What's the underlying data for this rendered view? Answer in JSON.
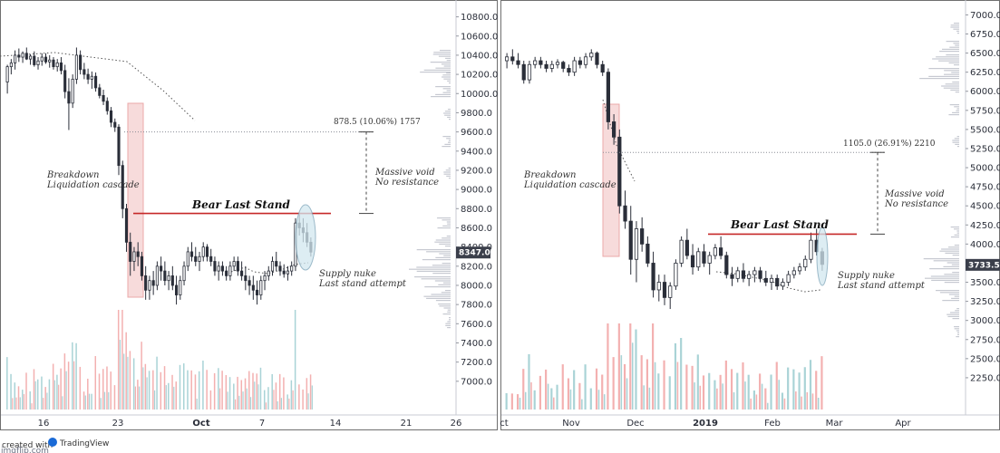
{
  "colors": {
    "up": "#2a2e39",
    "down": "#2a2e39",
    "vol_up": "#a9d3d6",
    "vol_down": "#f3b0b0",
    "level": "#c62828",
    "cascade_fill": "#f6d5d5",
    "cascade_stroke": "#e89a9a",
    "ellipse_fill": "#d2e7ef",
    "ellipse_stroke": "#7ba3b8",
    "ma": "#555555",
    "profile": "#b8bcc6"
  },
  "chart_data": [
    {
      "type": "candlestick",
      "ylim": [
        6800,
        10900
      ],
      "yticks": [
        "10800.0",
        "10600.0",
        "10400.0",
        "10200.0",
        "10000.0",
        "9800.0",
        "9600.0",
        "9400.0",
        "9200.0",
        "9000.0",
        "8800.0",
        "8600.0",
        "8400.0",
        "8200.0",
        "8000.0",
        "7800.0",
        "7600.0",
        "7400.0",
        "7200.0",
        "7000.0"
      ],
      "ytick_values": [
        10800,
        10600,
        10400,
        10200,
        10000,
        9800,
        9600,
        9400,
        9200,
        9000,
        8800,
        8600,
        8400,
        8200,
        8000,
        7800,
        7600,
        7400,
        7200,
        7000
      ],
      "xticks": [
        "16",
        "23",
        "Oct",
        "7",
        "14",
        "21",
        "26"
      ],
      "xtick_bold": [
        false,
        false,
        true,
        false,
        false,
        false,
        false
      ],
      "price_label": "8347.0",
      "last_price": 8347,
      "resistance": 8750,
      "measure_top": 9600,
      "measure_label": "878.5 (10.06%) 1757",
      "annotations": {
        "cascade": [
          "Breakdown",
          "Liquidation cascade"
        ],
        "title": "Bear Last Stand",
        "void": [
          "Massive void",
          "No resistance"
        ],
        "nuke": [
          "Supply nuke",
          "Last stand attempt"
        ]
      },
      "candles": [
        [
          10120,
          10300,
          10000,
          10280
        ],
        [
          10280,
          10360,
          10200,
          10320
        ],
        [
          10320,
          10450,
          10250,
          10400
        ],
        [
          10400,
          10470,
          10330,
          10380
        ],
        [
          10380,
          10440,
          10320,
          10420
        ],
        [
          10420,
          10480,
          10350,
          10360
        ],
        [
          10360,
          10410,
          10300,
          10390
        ],
        [
          10390,
          10440,
          10280,
          10300
        ],
        [
          10300,
          10380,
          10250,
          10340
        ],
        [
          10340,
          10420,
          10290,
          10380
        ],
        [
          10380,
          10420,
          10310,
          10330
        ],
        [
          10330,
          10400,
          10270,
          10350
        ],
        [
          10350,
          10380,
          10250,
          10280
        ],
        [
          10280,
          10360,
          10230,
          10320
        ],
        [
          10320,
          10380,
          10200,
          10240
        ],
        [
          10240,
          10300,
          9950,
          10020
        ],
        [
          10020,
          10160,
          9620,
          9900
        ],
        [
          9900,
          10200,
          9850,
          10150
        ],
        [
          10150,
          10480,
          10100,
          10400
        ],
        [
          10400,
          10450,
          10200,
          10250
        ],
        [
          10250,
          10320,
          10150,
          10200
        ],
        [
          10200,
          10260,
          10100,
          10150
        ],
        [
          10150,
          10230,
          10050,
          10180
        ],
        [
          10180,
          10220,
          10020,
          10060
        ],
        [
          10060,
          10100,
          9950,
          9980
        ],
        [
          9980,
          10040,
          9880,
          9920
        ],
        [
          9920,
          9960,
          9780,
          9820
        ],
        [
          9820,
          9860,
          9650,
          9700
        ],
        [
          9700,
          9740,
          9600,
          9650
        ],
        [
          9650,
          9680,
          9150,
          9250
        ],
        [
          9250,
          9300,
          8700,
          8800
        ],
        [
          8800,
          8850,
          8350,
          8450
        ],
        [
          8450,
          8550,
          8100,
          8250
        ],
        [
          8250,
          8400,
          8150,
          8350
        ],
        [
          8350,
          8450,
          8200,
          8300
        ],
        [
          8300,
          8350,
          8050,
          8100
        ],
        [
          8100,
          8200,
          7850,
          7950
        ],
        [
          7950,
          8100,
          7850,
          8050
        ],
        [
          8050,
          8150,
          7900,
          8000
        ],
        [
          8000,
          8250,
          7950,
          8200
        ],
        [
          8200,
          8300,
          8050,
          8150
        ],
        [
          8150,
          8250,
          8000,
          8050
        ],
        [
          8050,
          8150,
          7950,
          8100
        ],
        [
          8100,
          8200,
          7950,
          8000
        ],
        [
          8000,
          8100,
          7800,
          7900
        ],
        [
          7900,
          8100,
          7850,
          8050
        ],
        [
          8050,
          8250,
          8000,
          8200
        ],
        [
          8200,
          8400,
          8150,
          8350
        ],
        [
          8350,
          8450,
          8250,
          8300
        ],
        [
          8300,
          8400,
          8200,
          8250
        ],
        [
          8250,
          8350,
          8150,
          8300
        ],
        [
          8300,
          8450,
          8250,
          8400
        ],
        [
          8400,
          8430,
          8250,
          8300
        ],
        [
          8300,
          8380,
          8200,
          8250
        ],
        [
          8250,
          8300,
          8100,
          8150
        ],
        [
          8150,
          8250,
          8050,
          8200
        ],
        [
          8200,
          8250,
          8100,
          8150
        ],
        [
          8150,
          8200,
          8050,
          8100
        ],
        [
          8100,
          8250,
          8050,
          8200
        ],
        [
          8200,
          8300,
          8150,
          8250
        ],
        [
          8250,
          8300,
          8100,
          8150
        ],
        [
          8150,
          8250,
          8050,
          8100
        ],
        [
          8100,
          8200,
          7950,
          8050
        ],
        [
          8050,
          8100,
          7900,
          8000
        ],
        [
          8000,
          8100,
          7850,
          7950
        ],
        [
          7950,
          8050,
          7800,
          7900
        ],
        [
          7900,
          8100,
          7850,
          8050
        ],
        [
          8050,
          8150,
          7950,
          8100
        ],
        [
          8100,
          8200,
          8050,
          8150
        ],
        [
          8150,
          8300,
          8100,
          8250
        ],
        [
          8250,
          8350,
          8150,
          8200
        ],
        [
          8200,
          8250,
          8100,
          8150
        ],
        [
          8150,
          8220,
          8080,
          8120
        ],
        [
          8120,
          8200,
          8050,
          8150
        ],
        [
          8150,
          8250,
          8100,
          8200
        ],
        [
          8200,
          8700,
          8150,
          8650
        ],
        [
          8650,
          8740,
          8520,
          8600
        ],
        [
          8600,
          8700,
          8450,
          8550
        ],
        [
          8550,
          8650,
          8400,
          8450
        ],
        [
          8450,
          8500,
          8300,
          8347
        ]
      ]
    },
    {
      "type": "candlestick",
      "ylim": [
        2000,
        7100
      ],
      "yticks": [
        "7000.0",
        "6750.0",
        "6500.0",
        "6250.0",
        "6000.0",
        "5750.0",
        "5500.0",
        "5250.0",
        "5000.0",
        "4750.0",
        "4500.0",
        "4250.0",
        "4000.0",
        "3750.0",
        "3500.0",
        "3250.0",
        "3000.0",
        "2750.0",
        "2500.0",
        "2250.0"
      ],
      "ytick_values": [
        7000,
        6750,
        6500,
        6250,
        6000,
        5750,
        5500,
        5250,
        5000,
        4750,
        4500,
        4250,
        4000,
        3750,
        3500,
        3250,
        3000,
        2750,
        2500,
        2250
      ],
      "xticks": [
        "ct",
        "Nov",
        "Dec",
        "2019",
        "Feb",
        "Mar",
        "Apr"
      ],
      "xtick_bold": [
        false,
        false,
        false,
        true,
        false,
        false,
        false
      ],
      "price_label": "3733.5",
      "last_price": 3733.5,
      "resistance": 4130,
      "measure_top": 5200,
      "measure_label": "1105.0 (26.91%) 2210",
      "annotations": {
        "cascade": [
          "Breakdown",
          "Liquidation cascade"
        ],
        "title": "Bear Last Stand",
        "void": [
          "Massive void",
          "No resistance"
        ],
        "nuke": [
          "Supply nuke",
          "Last stand attempt"
        ]
      },
      "candles": [
        [
          6400,
          6500,
          6300,
          6450
        ],
        [
          6450,
          6550,
          6350,
          6400
        ],
        [
          6400,
          6500,
          6300,
          6350
        ],
        [
          6350,
          6400,
          6100,
          6150
        ],
        [
          6150,
          6400,
          6100,
          6350
        ],
        [
          6350,
          6450,
          6300,
          6400
        ],
        [
          6400,
          6450,
          6300,
          6350
        ],
        [
          6350,
          6400,
          6250,
          6300
        ],
        [
          6300,
          6400,
          6250,
          6350
        ],
        [
          6350,
          6420,
          6300,
          6380
        ],
        [
          6380,
          6400,
          6250,
          6300
        ],
        [
          6300,
          6350,
          6200,
          6250
        ],
        [
          6250,
          6450,
          6200,
          6400
        ],
        [
          6400,
          6450,
          6300,
          6350
        ],
        [
          6350,
          6500,
          6300,
          6450
        ],
        [
          6450,
          6550,
          6400,
          6500
        ],
        [
          6500,
          6520,
          6300,
          6350
        ],
        [
          6350,
          6400,
          6200,
          6250
        ],
        [
          6250,
          6300,
          5500,
          5600
        ],
        [
          5600,
          5700,
          5300,
          5400
        ],
        [
          5400,
          5500,
          4400,
          4500
        ],
        [
          4500,
          4700,
          4200,
          4300
        ],
        [
          4300,
          4500,
          3600,
          3800
        ],
        [
          3800,
          4300,
          3500,
          4200
        ],
        [
          4200,
          4350,
          3900,
          4000
        ],
        [
          4000,
          4100,
          3700,
          3750
        ],
        [
          3750,
          3900,
          3300,
          3400
        ],
        [
          3400,
          3600,
          3250,
          3500
        ],
        [
          3500,
          3600,
          3200,
          3300
        ],
        [
          3300,
          3500,
          3150,
          3450
        ],
        [
          3450,
          3800,
          3400,
          3750
        ],
        [
          3750,
          4100,
          3700,
          4050
        ],
        [
          4050,
          4200,
          3800,
          3850
        ],
        [
          3850,
          4000,
          3600,
          3700
        ],
        [
          3700,
          3950,
          3650,
          3900
        ],
        [
          3900,
          4000,
          3700,
          3750
        ],
        [
          3750,
          3900,
          3600,
          3850
        ],
        [
          3850,
          4000,
          3800,
          3950
        ],
        [
          3950,
          4100,
          3800,
          3850
        ],
        [
          3850,
          3900,
          3550,
          3600
        ],
        [
          3600,
          3700,
          3450,
          3550
        ],
        [
          3550,
          3700,
          3500,
          3650
        ],
        [
          3650,
          3750,
          3500,
          3550
        ],
        [
          3550,
          3650,
          3450,
          3600
        ],
        [
          3600,
          3700,
          3500,
          3650
        ],
        [
          3650,
          3700,
          3500,
          3550
        ],
        [
          3550,
          3650,
          3450,
          3500
        ],
        [
          3500,
          3600,
          3400,
          3550
        ],
        [
          3550,
          3600,
          3400,
          3450
        ],
        [
          3450,
          3550,
          3400,
          3500
        ],
        [
          3500,
          3650,
          3450,
          3600
        ],
        [
          3600,
          3700,
          3550,
          3650
        ],
        [
          3650,
          3750,
          3600,
          3700
        ],
        [
          3700,
          3850,
          3650,
          3800
        ],
        [
          3800,
          4150,
          3750,
          4050
        ],
        [
          4050,
          4200,
          3850,
          3900
        ],
        [
          3900,
          3950,
          3650,
          3733.5
        ]
      ]
    }
  ]
}
